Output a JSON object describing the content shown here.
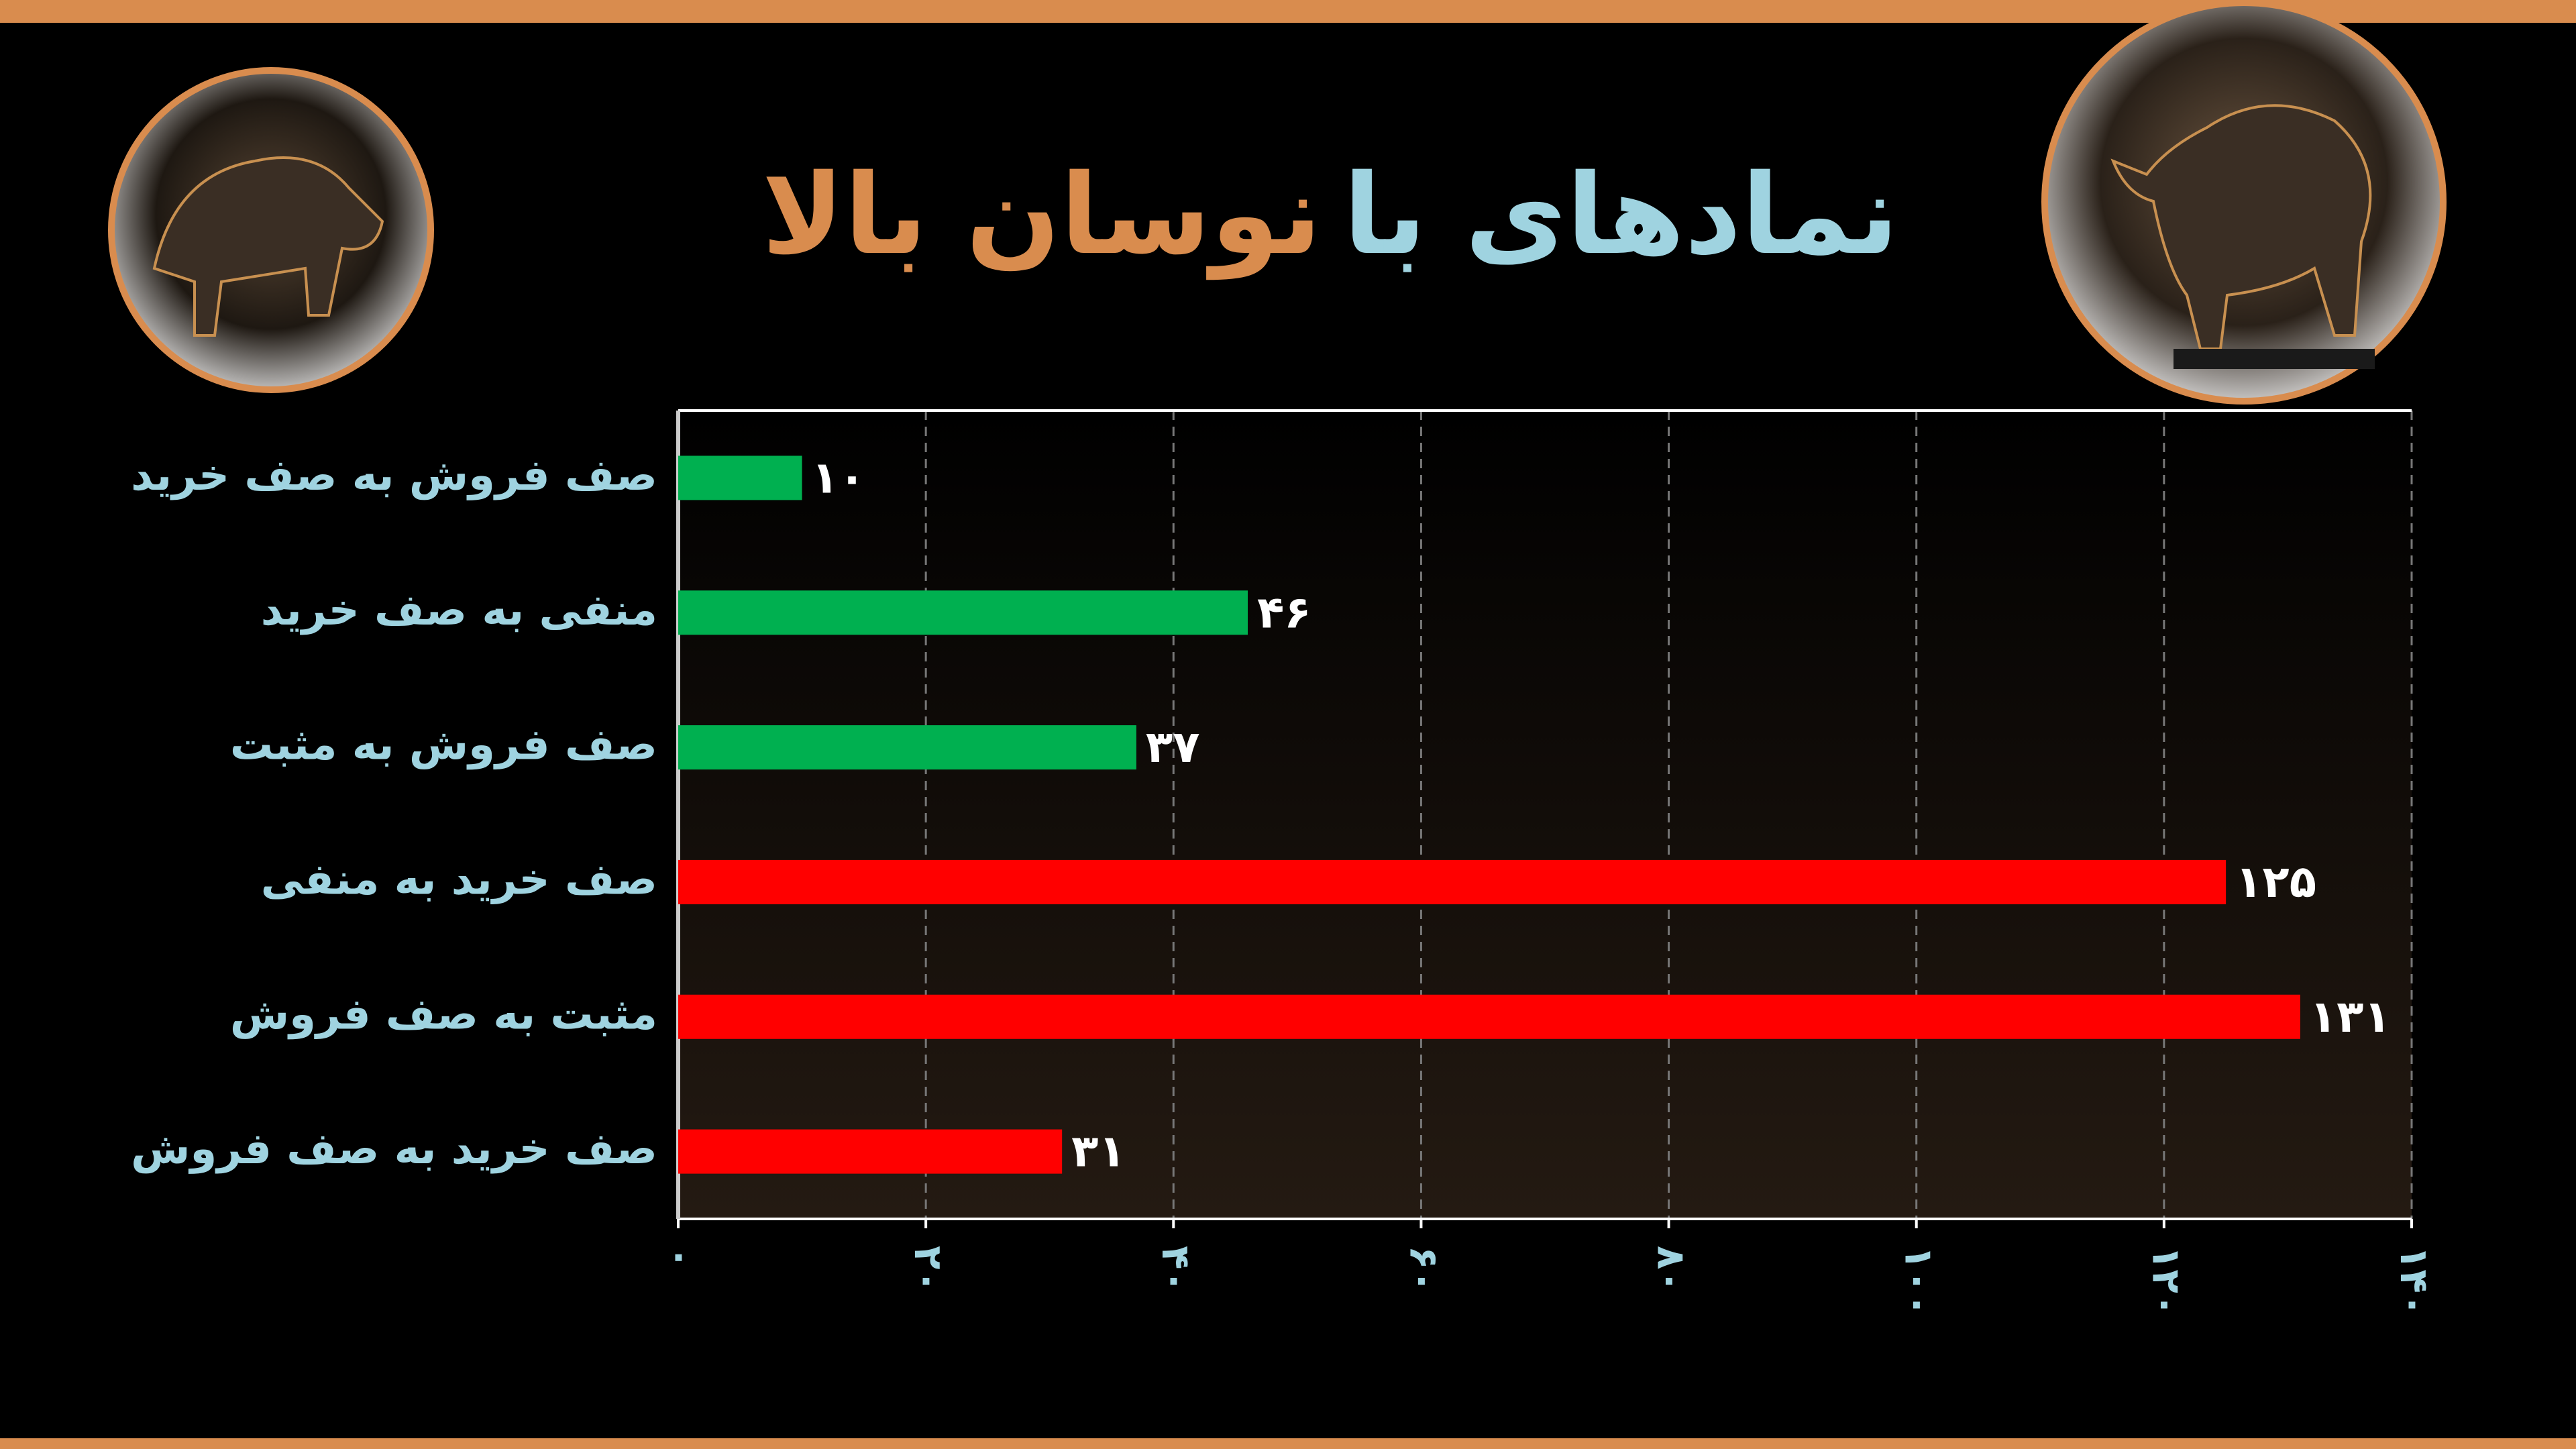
{
  "chart_data": {
    "type": "hbar",
    "title_parts": [
      {
        "text": "نمادهای با",
        "color": "#9fd3e0"
      },
      {
        "text": "نوسان بالا",
        "color": "#d98c4e"
      }
    ],
    "categories": [
      "صف فروش به صف خرید",
      "منفی به صف خرید",
      "صف فروش به مثبت",
      "صف خرید به منفی",
      "مثبت به صف فروش",
      "صف خرید به صف فروش"
    ],
    "values": [
      10,
      46,
      37,
      125,
      131,
      31
    ],
    "value_labels": [
      "۱۰",
      "۴۶",
      "۳۷",
      "۱۲۵",
      "۱۳۱",
      "۳۱"
    ],
    "colors": [
      "#00b050",
      "#00b050",
      "#00b050",
      "#ff0000",
      "#ff0000",
      "#ff0000"
    ],
    "xlim": [
      0,
      140
    ],
    "xticks": [
      {
        "value": 0,
        "label": "۰"
      },
      {
        "value": 20,
        "label": "۲۰"
      },
      {
        "value": 40,
        "label": "۴۰"
      },
      {
        "value": 60,
        "label": "۶۰"
      },
      {
        "value": 80,
        "label": "۸۰"
      },
      {
        "value": 100,
        "label": "۱۰۰"
      },
      {
        "value": 120,
        "label": "۱۲۰"
      },
      {
        "value": 140,
        "label": "۱۴۰"
      }
    ],
    "grid": true
  }
}
